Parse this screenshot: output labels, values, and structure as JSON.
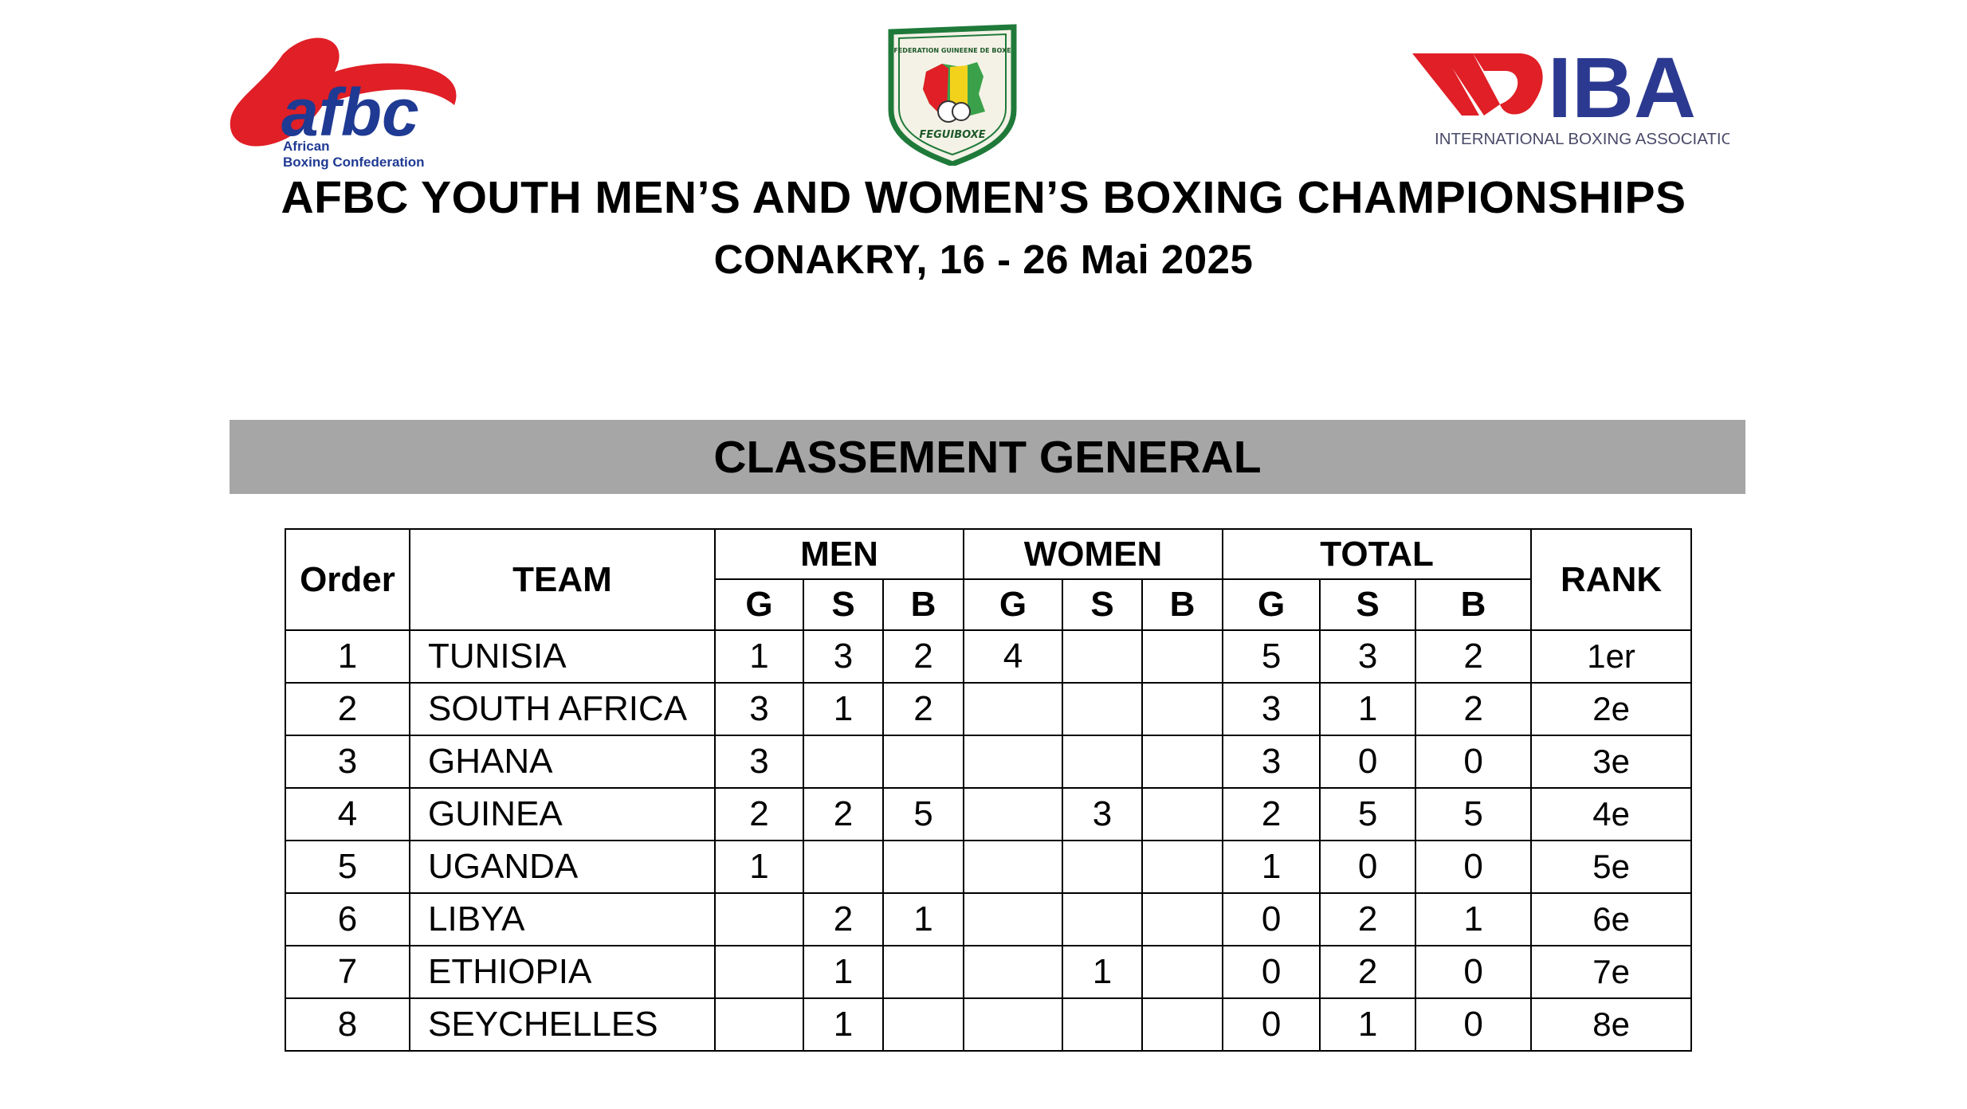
{
  "logos": {
    "afbc": {
      "wordmark": "afbc",
      "line1": "African",
      "line2": "Boxing Confederation",
      "color": "#e01f26",
      "text_color": "#1f3a93"
    },
    "feguiboxe": {
      "top_text": "FEDERATION GUINEENE DE BOXE",
      "bottom_text": "FEGUIBOXE"
    },
    "iba": {
      "wordmark": "IBA",
      "subtitle": "INTERNATIONAL BOXING ASSOCIATION",
      "color": "#2b3990",
      "accent": "#e01f26"
    }
  },
  "header": {
    "title": "AFBC YOUTH MEN’S AND WOMEN’S BOXING CHAMPIONSHIPS",
    "subtitle": "CONAKRY, 16 - 26 Mai 2025"
  },
  "banner": {
    "label": "CLASSEMENT GENERAL",
    "color": "#a6a6a6"
  },
  "table": {
    "headers": {
      "order": "Order",
      "team": "TEAM",
      "men": "MEN",
      "women": "WOMEN",
      "total": "TOTAL",
      "rank": "RANK",
      "g": "G",
      "s": "S",
      "b": "B"
    },
    "rows": [
      {
        "order": "1",
        "team": "TUNISIA",
        "men_g": "1",
        "men_s": "3",
        "men_b": "2",
        "women_g": "4",
        "women_s": "",
        "women_b": "",
        "total_g": "5",
        "total_s": "3",
        "total_b": "2",
        "rank": "1er"
      },
      {
        "order": "2",
        "team": "SOUTH AFRICA",
        "men_g": "3",
        "men_s": "1",
        "men_b": "2",
        "women_g": "",
        "women_s": "",
        "women_b": "",
        "total_g": "3",
        "total_s": "1",
        "total_b": "2",
        "rank": "2e"
      },
      {
        "order": "3",
        "team": "GHANA",
        "men_g": "3",
        "men_s": "",
        "men_b": "",
        "women_g": "",
        "women_s": "",
        "women_b": "",
        "total_g": "3",
        "total_s": "0",
        "total_b": "0",
        "rank": "3e"
      },
      {
        "order": "4",
        "team": "GUINEA",
        "men_g": "2",
        "men_s": "2",
        "men_b": "5",
        "women_g": "",
        "women_s": "3",
        "women_b": "",
        "total_g": "2",
        "total_s": "5",
        "total_b": "5",
        "rank": "4e"
      },
      {
        "order": "5",
        "team": "UGANDA",
        "men_g": "1",
        "men_s": "",
        "men_b": "",
        "women_g": "",
        "women_s": "",
        "women_b": "",
        "total_g": "1",
        "total_s": "0",
        "total_b": "0",
        "rank": "5e"
      },
      {
        "order": "6",
        "team": "LIBYA",
        "men_g": "",
        "men_s": "2",
        "men_b": "1",
        "women_g": "",
        "women_s": "",
        "women_b": "",
        "total_g": "0",
        "total_s": "2",
        "total_b": "1",
        "rank": "6e"
      },
      {
        "order": "7",
        "team": "ETHIOPIA",
        "men_g": "",
        "men_s": "1",
        "men_b": "",
        "women_g": "",
        "women_s": "1",
        "women_b": "",
        "total_g": "0",
        "total_s": "2",
        "total_b": "0",
        "rank": "7e"
      },
      {
        "order": "8",
        "team": "SEYCHELLES",
        "men_g": "",
        "men_s": "1",
        "men_b": "",
        "women_g": "",
        "women_s": "",
        "women_b": "",
        "total_g": "0",
        "total_s": "1",
        "total_b": "0",
        "rank": "8e"
      }
    ]
  }
}
